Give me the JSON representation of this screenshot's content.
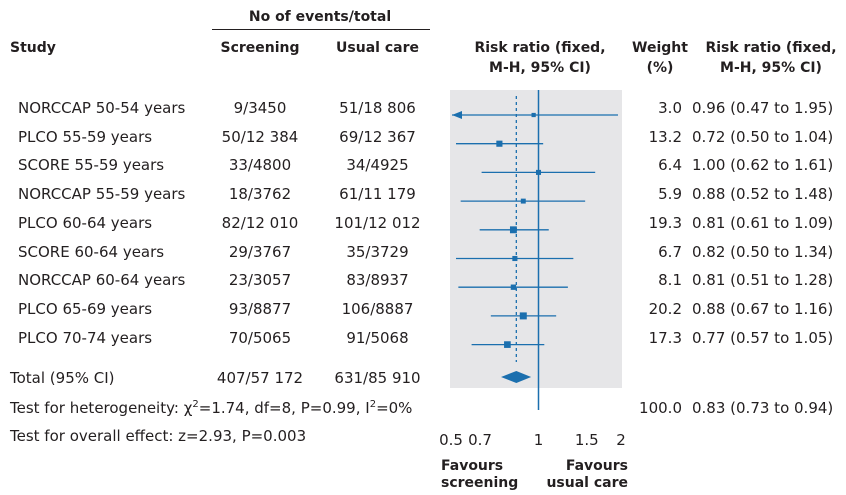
{
  "header": {
    "events_group": "No of events/total",
    "study": "Study",
    "screening": "Screening",
    "usual_care": "Usual care",
    "rr_plot_1": "Risk ratio (fixed,",
    "rr_plot_2": "M-H, 95% CI)",
    "weight_1": "Weight",
    "weight_2": "(%)",
    "rr_text_1": "Risk ratio (fixed,",
    "rr_text_2": "M-H, 95% CI)"
  },
  "rows": [
    {
      "study": "NORCCAP 50-54 years",
      "screening": "9/3450",
      "usual": "51/18 806",
      "weight": "3.0",
      "rr_text": "0.96 (0.47 to 1.95)"
    },
    {
      "study": "PLCO 55-59 years",
      "screening": "50/12 384",
      "usual": "69/12 367",
      "weight": "13.2",
      "rr_text": "0.72 (0.50 to 1.04)"
    },
    {
      "study": "SCORE 55-59 years",
      "screening": "33/4800",
      "usual": "34/4925",
      "weight": "6.4",
      "rr_text": "1.00 (0.62 to 1.61)"
    },
    {
      "study": "NORCCAP 55-59 years",
      "screening": "18/3762",
      "usual": "61/11 179",
      "weight": "5.9",
      "rr_text": "0.88 (0.52 to 1.48)"
    },
    {
      "study": "PLCO 60-64 years",
      "screening": "82/12 010",
      "usual": "101/12 012",
      "weight": "19.3",
      "rr_text": "0.81 (0.61 to 1.09)"
    },
    {
      "study": "SCORE 60-64 years",
      "screening": "29/3767",
      "usual": "35/3729",
      "weight": "6.7",
      "rr_text": "0.82 (0.50 to 1.34)"
    },
    {
      "study": "NORCCAP 60-64 years",
      "screening": "23/3057",
      "usual": "83/8937",
      "weight": "8.1",
      "rr_text": "0.81 (0.51 to 1.28)"
    },
    {
      "study": "PLCO 65-69 years",
      "screening": "93/8877",
      "usual": "106/8887",
      "weight": "20.2",
      "rr_text": "0.88 (0.67 to 1.16)"
    },
    {
      "study": "PLCO 70-74 years",
      "screening": "70/5065",
      "usual": "91/5068",
      "weight": "17.3",
      "rr_text": "0.77 (0.57 to 1.05)"
    }
  ],
  "total": {
    "label": "Total (95% CI)",
    "screening": "407/57 172",
    "usual": "631/85 910"
  },
  "heterogeneity": {
    "prefix": "Test for heterogeneity: χ",
    "sup1": "2",
    "mid": "=1.74, df=8, P=0.99, I",
    "sup2": "2",
    "suffix": "=0%",
    "weight": "100.0",
    "rr_text": "0.83 (0.73 to 0.94)"
  },
  "overall_effect": "Test for overall effect: z=2.93, P=0.003",
  "axis_labels": {
    "left_1": "Favours",
    "left_2": "screening",
    "right_1": "Favours",
    "right_2": "usual care"
  },
  "chart_data": {
    "type": "forest",
    "scale": "log",
    "xlim": [
      0.5,
      2
    ],
    "x_ticks": [
      0.5,
      0.7,
      1,
      1.5,
      2
    ],
    "x_tick_labels": [
      "0.5",
      "0.7",
      "1",
      "1.5",
      "2"
    ],
    "reference_line": 1,
    "categories": [
      "NORCCAP 50-54 years",
      "PLCO 55-59 years",
      "SCORE 55-59 years",
      "NORCCAP 55-59 years",
      "PLCO 60-64 years",
      "SCORE 60-64 years",
      "NORCCAP 60-64 years",
      "PLCO 65-69 years",
      "PLCO 70-74 years"
    ],
    "estimates": [
      {
        "rr": 0.96,
        "lo": 0.47,
        "hi": 1.95,
        "weight": 3.0
      },
      {
        "rr": 0.72,
        "lo": 0.5,
        "hi": 1.04,
        "weight": 13.2
      },
      {
        "rr": 1.0,
        "lo": 0.62,
        "hi": 1.61,
        "weight": 6.4
      },
      {
        "rr": 0.88,
        "lo": 0.52,
        "hi": 1.48,
        "weight": 5.9
      },
      {
        "rr": 0.81,
        "lo": 0.61,
        "hi": 1.09,
        "weight": 19.3
      },
      {
        "rr": 0.82,
        "lo": 0.5,
        "hi": 1.34,
        "weight": 6.7
      },
      {
        "rr": 0.81,
        "lo": 0.51,
        "hi": 1.28,
        "weight": 8.1
      },
      {
        "rr": 0.88,
        "lo": 0.67,
        "hi": 1.16,
        "weight": 20.2
      },
      {
        "rr": 0.77,
        "lo": 0.57,
        "hi": 1.05,
        "weight": 17.3
      }
    ],
    "pooled": {
      "rr": 0.83,
      "lo": 0.73,
      "hi": 0.94
    },
    "colors": {
      "marker": "#1b6fae",
      "panel": "#e6e6e8"
    }
  }
}
